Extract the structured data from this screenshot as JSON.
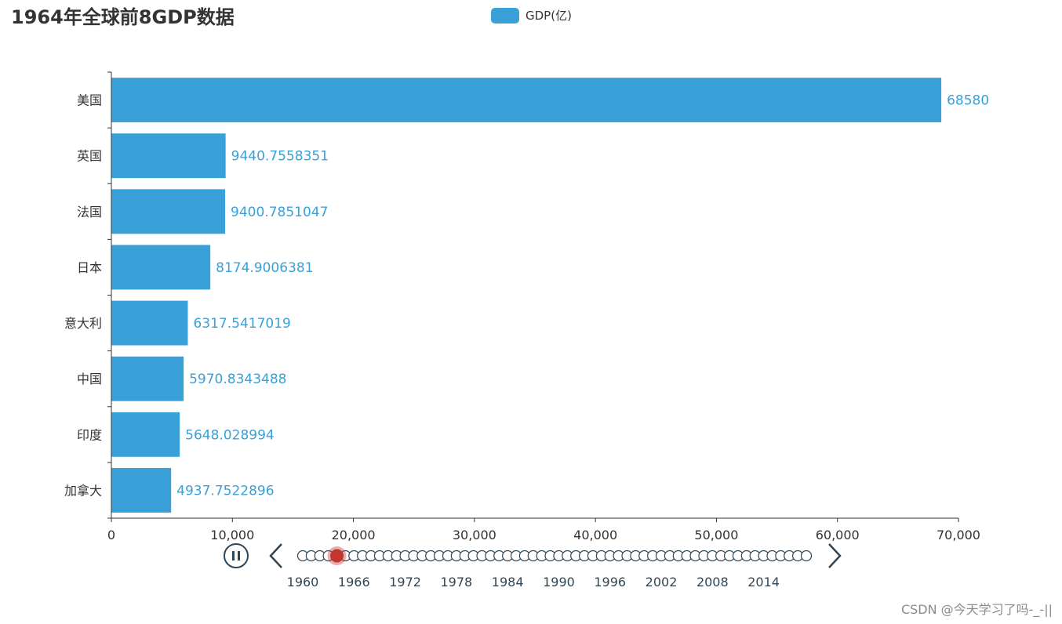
{
  "title": "1964年全球前8GDP数据",
  "legend": {
    "label": "GDP(亿)",
    "color": "#3aa1d8"
  },
  "watermark": "CSDN @今天学习了吗-_-||",
  "chart_data": {
    "type": "bar",
    "orientation": "horizontal",
    "title": "1964年全球前8GDP数据",
    "categories": [
      "美国",
      "英国",
      "法国",
      "日本",
      "意大利",
      "中国",
      "印度",
      "加拿大"
    ],
    "values": [
      68580,
      9440.7558351,
      9400.7851047,
      8174.9006381,
      6317.5417019,
      5970.8343488,
      5648.028994,
      4937.7522896
    ],
    "value_labels": [
      "68580",
      "9440.7558351",
      "9400.7851047",
      "8174.9006381",
      "6317.5417019",
      "5970.8343488",
      "5648.028994",
      "4937.7522896"
    ],
    "series": [
      {
        "name": "GDP(亿)",
        "color": "#3aa1d8"
      }
    ],
    "xlim": [
      0,
      70000
    ],
    "x_ticks": [
      0,
      10000,
      20000,
      30000,
      40000,
      50000,
      60000,
      70000
    ],
    "x_tick_labels": [
      "0",
      "10,000",
      "20,000",
      "30,000",
      "40,000",
      "50,000",
      "60,000",
      "70,000"
    ],
    "grid": false,
    "legend_position": "top-center"
  },
  "timeline": {
    "years_labeled": [
      "1960",
      "1966",
      "1972",
      "1978",
      "1984",
      "1990",
      "1996",
      "2002",
      "2008",
      "2014"
    ],
    "point_count": 60,
    "current_index": 4,
    "state": "playing",
    "active_color": "#c23531",
    "control_color": "#304654",
    "icons": {
      "play_pause": "pause-icon",
      "prev": "chevron-left-icon",
      "next": "chevron-right-icon"
    }
  }
}
